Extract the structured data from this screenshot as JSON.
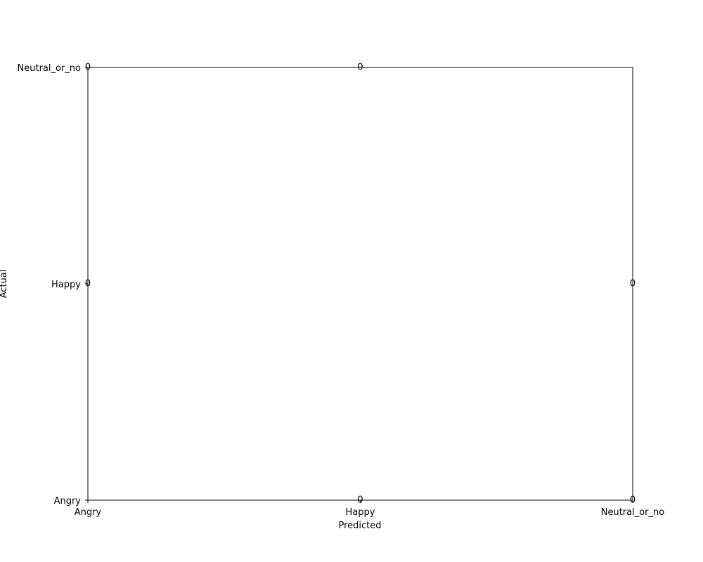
{
  "chart_data": {
    "type": "heatmap",
    "title": "",
    "xlabel": "Predicted",
    "ylabel": "Actual",
    "x_categories": [
      "Angry",
      "Happy",
      "Neutral_or_no"
    ],
    "y_categories": [
      "Angry",
      "Happy",
      "Neutral_or_no"
    ],
    "grid": false,
    "annotations": [
      {
        "x": "Angry",
        "y": "Neutral_or_no",
        "value": 0
      },
      {
        "x": "Happy",
        "y": "Neutral_or_no",
        "value": 0
      },
      {
        "x": "Angry",
        "y": "Happy",
        "value": 0
      },
      {
        "x": "Neutral_or_no",
        "y": "Happy",
        "value": 0
      },
      {
        "x": "Happy",
        "y": "Angry",
        "value": 0
      },
      {
        "x": "Neutral_or_no",
        "y": "Angry",
        "value": 0
      }
    ],
    "colors": {
      "frame": "#000000",
      "text": "#000000",
      "background": "#ffffff"
    }
  }
}
